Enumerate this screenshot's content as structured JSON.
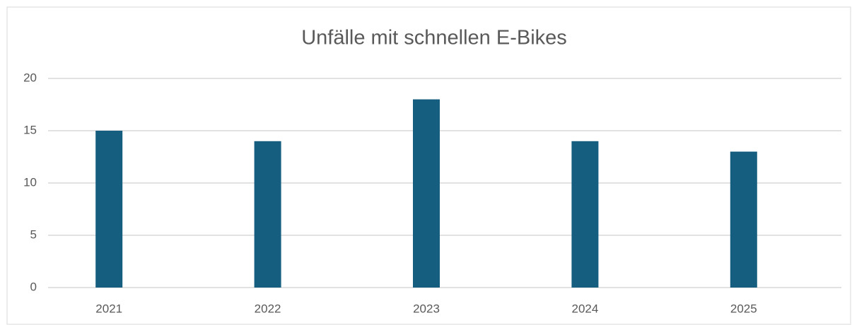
{
  "chart_data": {
    "type": "bar",
    "title": "Unfälle mit schnellen E-Bikes",
    "categories": [
      "2021",
      "2022",
      "2023",
      "2024",
      "2025"
    ],
    "values": [
      15,
      14,
      18,
      14,
      13
    ],
    "color": "#155e80",
    "ylim": [
      0,
      20
    ],
    "yticks": [
      0,
      5,
      10,
      15,
      20
    ],
    "grid": true
  }
}
